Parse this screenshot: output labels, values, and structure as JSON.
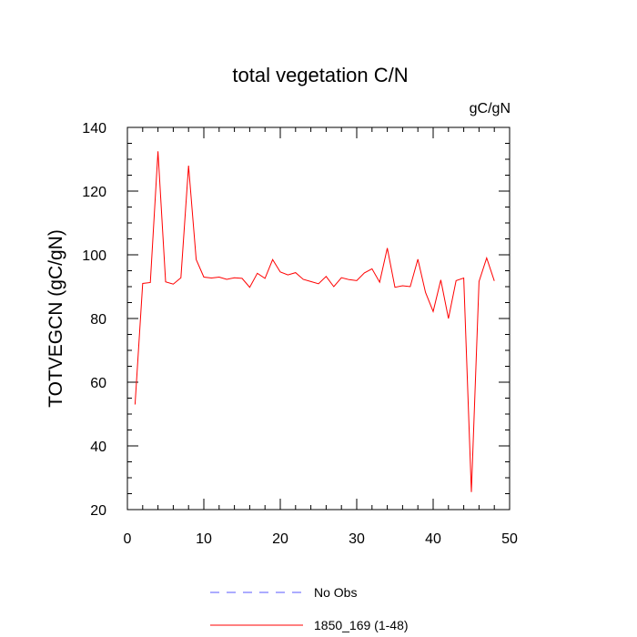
{
  "chart_data": {
    "type": "line",
    "title": "total vegetation C/N",
    "units_label": "gC/gN",
    "xlabel": "",
    "ylabel": "TOTVEGCN  (gC/gN)",
    "xlim": [
      0,
      50
    ],
    "ylim": [
      20,
      140
    ],
    "xticks": [
      0,
      10,
      20,
      30,
      40,
      50
    ],
    "yticks": [
      20,
      40,
      60,
      80,
      100,
      120,
      140
    ],
    "grid": false,
    "legend_position": "bottom-center",
    "series": [
      {
        "name": "No Obs",
        "color": "#5a5aff",
        "style": "dashed",
        "x": [],
        "values": []
      },
      {
        "name": "1850_169 (1-48)",
        "color": "#ff0000",
        "style": "solid",
        "x": [
          1,
          2,
          3,
          4,
          5,
          6,
          7,
          8,
          9,
          10,
          11,
          12,
          13,
          14,
          15,
          16,
          17,
          18,
          19,
          20,
          21,
          22,
          23,
          24,
          25,
          26,
          27,
          28,
          29,
          30,
          31,
          32,
          33,
          34,
          35,
          36,
          37,
          38,
          39,
          40,
          41,
          42,
          43,
          44,
          45,
          46,
          47,
          48
        ],
        "values": [
          53,
          91,
          91.3,
          132.5,
          91.5,
          90.8,
          92.8,
          128,
          98.5,
          93,
          92.7,
          93,
          92.3,
          92.8,
          92.6,
          89.8,
          94.2,
          92.6,
          98.5,
          94.6,
          93.7,
          94.4,
          92.3,
          91.6,
          90.9,
          93.2,
          90,
          92.8,
          92.2,
          91.9,
          94.3,
          95.6,
          91.4,
          102.1,
          89.8,
          90.3,
          90,
          98.6,
          88.2,
          82.2,
          92.1,
          80,
          91.9,
          92.7,
          25.5,
          91.6,
          99,
          91.8
        ]
      }
    ]
  }
}
